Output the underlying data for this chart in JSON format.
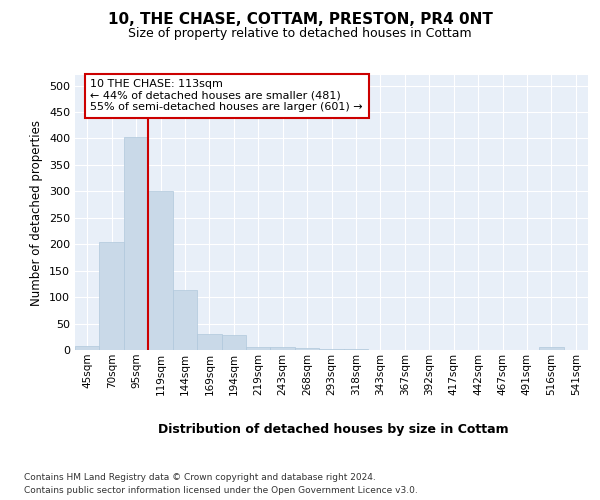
{
  "title": "10, THE CHASE, COTTAM, PRESTON, PR4 0NT",
  "subtitle": "Size of property relative to detached houses in Cottam",
  "xlabel": "Distribution of detached houses by size in Cottam",
  "ylabel": "Number of detached properties",
  "categories": [
    "45sqm",
    "70sqm",
    "95sqm",
    "119sqm",
    "144sqm",
    "169sqm",
    "194sqm",
    "219sqm",
    "243sqm",
    "268sqm",
    "293sqm",
    "318sqm",
    "343sqm",
    "367sqm",
    "392sqm",
    "417sqm",
    "442sqm",
    "467sqm",
    "491sqm",
    "516sqm",
    "541sqm"
  ],
  "values": [
    7,
    204,
    403,
    301,
    113,
    30,
    28,
    6,
    5,
    3,
    1,
    1,
    0,
    0,
    0,
    0,
    0,
    0,
    0,
    5,
    0
  ],
  "bar_color": "#c9d9e8",
  "bar_edge_color": "#b0c8dc",
  "red_line_color": "#cc0000",
  "annotation_line1": "10 THE CHASE: 113sqm",
  "annotation_line2": "← 44% of detached houses are smaller (481)",
  "annotation_line3": "55% of semi-detached houses are larger (601) →",
  "annotation_box_color": "white",
  "annotation_box_edge": "#cc0000",
  "ylim": [
    0,
    520
  ],
  "yticks": [
    0,
    50,
    100,
    150,
    200,
    250,
    300,
    350,
    400,
    450,
    500
  ],
  "background_color": "#e8eff8",
  "footer_line1": "Contains HM Land Registry data © Crown copyright and database right 2024.",
  "footer_line2": "Contains public sector information licensed under the Open Government Licence v3.0."
}
